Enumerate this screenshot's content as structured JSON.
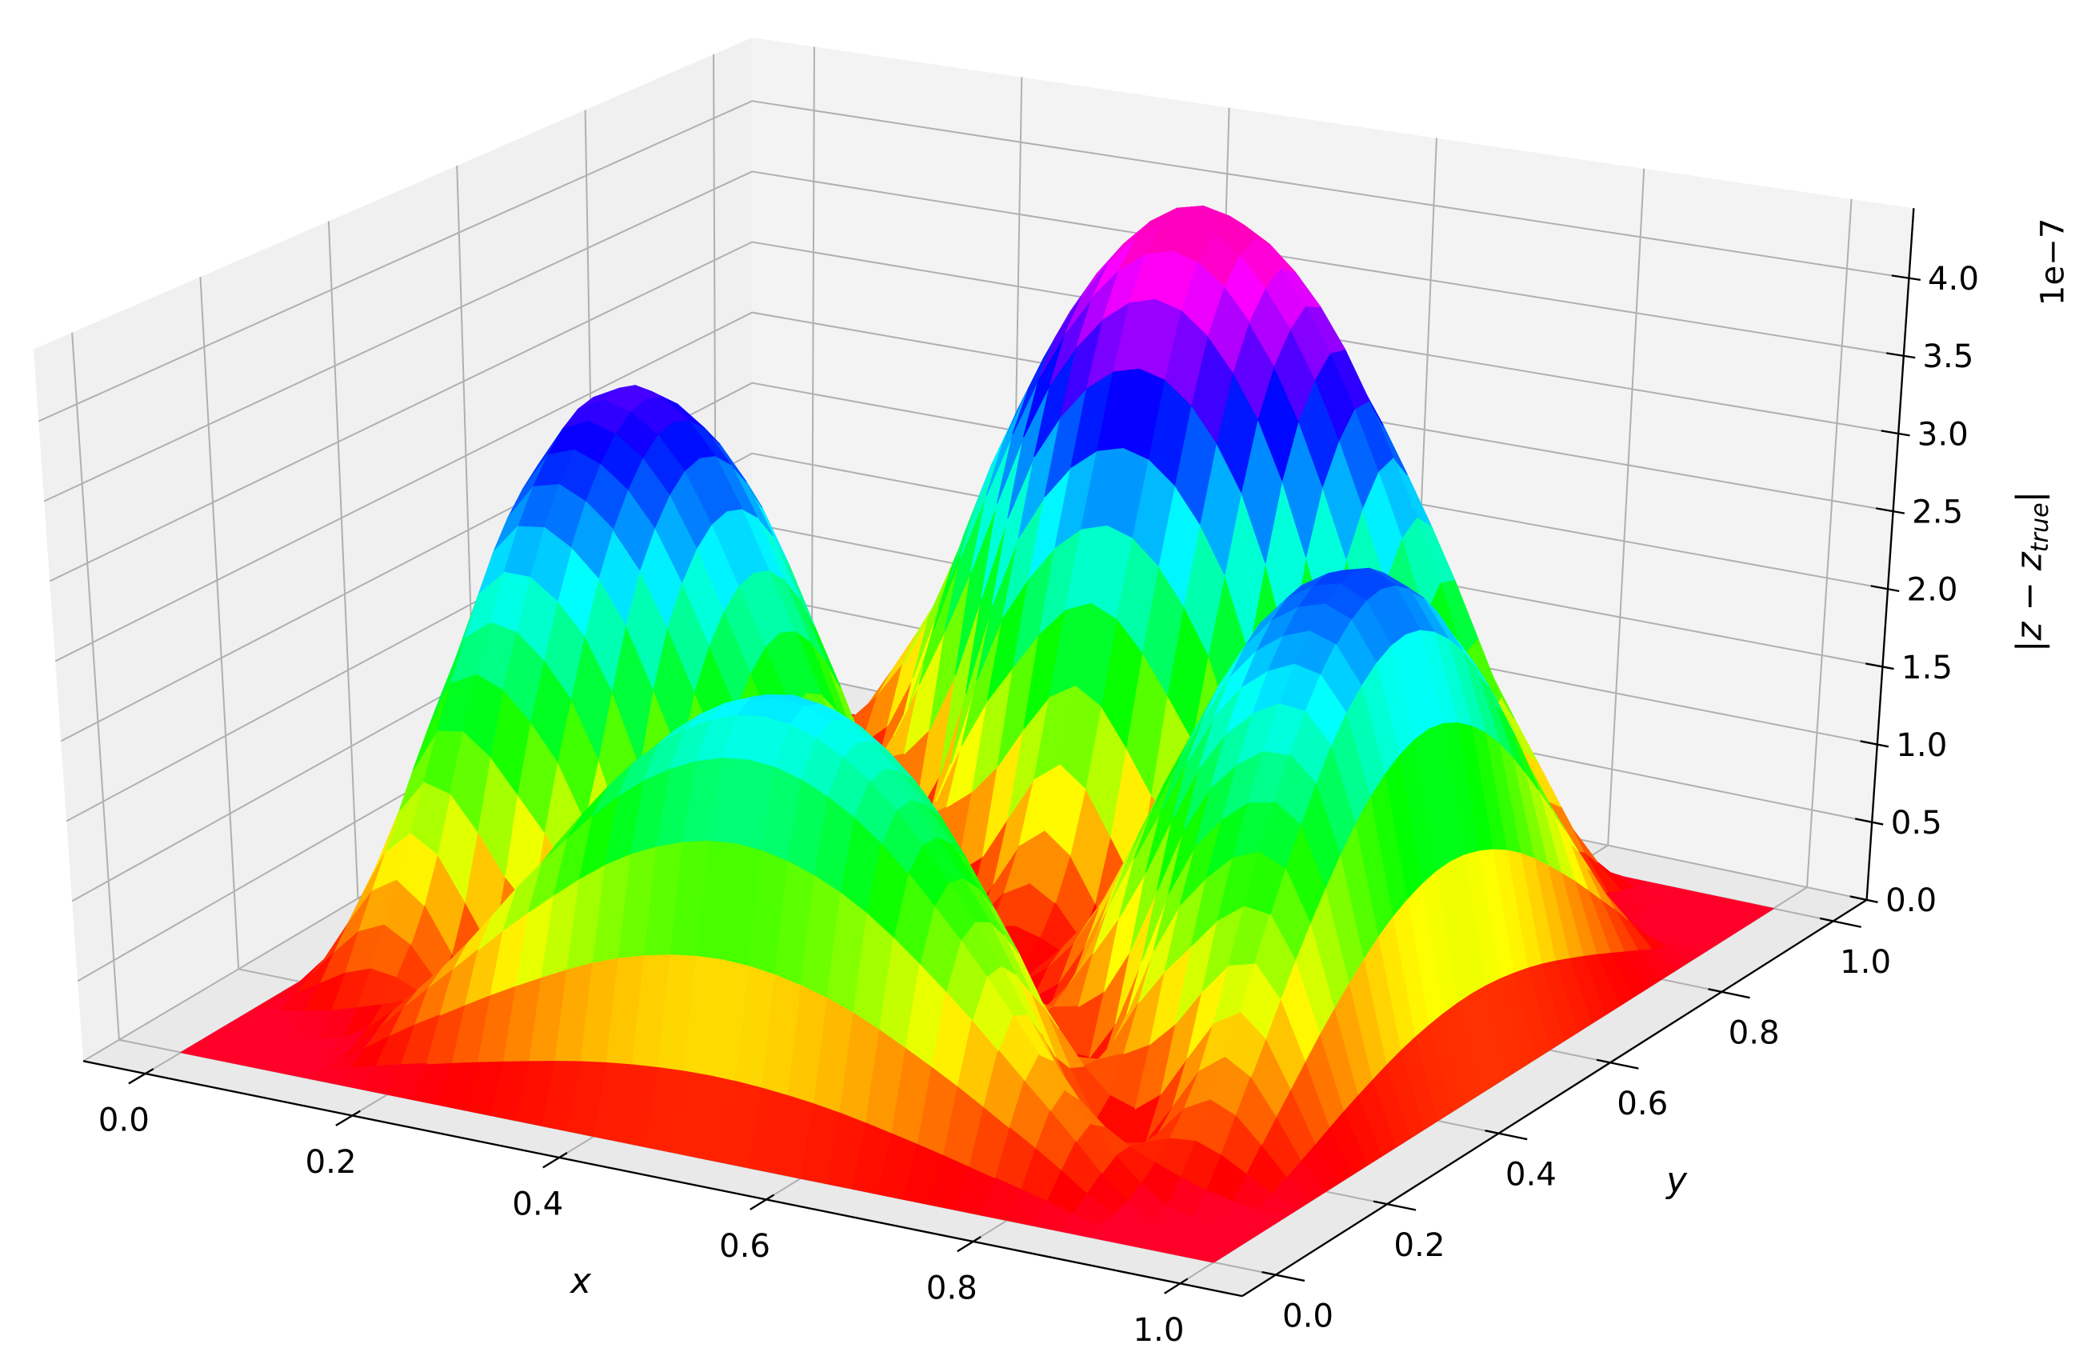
{
  "chart_data": {
    "type": "surface",
    "xlabel": "x",
    "ylabel": "y",
    "zlabel": [
      "|z − z",
      "true",
      "|"
    ],
    "z_offset_text": "1e−7",
    "x": [
      0,
      0.1,
      0.2,
      0.3,
      0.4,
      0.5,
      0.6,
      0.7,
      0.8,
      0.9,
      1
    ],
    "y": [
      0,
      0.1,
      0.2,
      0.3,
      0.4,
      0.5,
      0.6,
      0.7,
      0.8,
      0.9,
      1
    ],
    "z": [
      [
        0,
        0,
        0,
        0,
        0,
        0,
        0,
        0,
        0,
        0,
        0
      ],
      [
        0,
        0,
        0.57,
        1.35,
        1.98,
        2.22,
        1.98,
        1.35,
        0.57,
        0,
        0
      ],
      [
        0,
        0.78,
        0,
        1.07,
        2.01,
        2.38,
        2.01,
        1.07,
        0,
        0.68,
        0
      ],
      [
        0,
        1.83,
        1.45,
        0,
        1.04,
        1.45,
        1.04,
        0,
        1.28,
        1.62,
        0
      ],
      [
        0,
        2.69,
        2.73,
        1.41,
        0,
        0.43,
        0,
        1.24,
        2.41,
        2.37,
        0
      ],
      [
        0,
        3.02,
        3.23,
        1.98,
        0.58,
        0,
        0.51,
        1.74,
        2.85,
        2.66,
        0
      ],
      [
        0,
        2.69,
        2.73,
        1.41,
        0,
        0.74,
        0,
        1.24,
        2.41,
        2.37,
        0
      ],
      [
        0,
        1.83,
        1.45,
        0,
        1.78,
        2.5,
        1.78,
        0,
        1.28,
        1.62,
        0
      ],
      [
        0,
        0.78,
        0,
        1.84,
        3.45,
        4.09,
        3.45,
        1.84,
        0,
        0.68,
        0
      ],
      [
        0,
        0,
        0.98,
        2.32,
        3.4,
        3.82,
        3.4,
        2.32,
        0.98,
        0,
        0
      ],
      [
        0,
        0,
        0,
        0,
        0,
        0,
        0,
        0,
        0,
        0,
        0
      ]
    ],
    "xlim": [
      -0.06,
      1.06
    ],
    "ylim": [
      -0.06,
      1.06
    ],
    "zlim": [
      0,
      4.45
    ],
    "xticks": [
      {
        "value": 0,
        "label": "0.0"
      },
      0.2,
      0.4,
      0.6,
      0.8,
      {
        "value": 1,
        "label": "1.0"
      }
    ],
    "yticks": [
      {
        "value": 0,
        "label": "0.0"
      },
      0.2,
      0.4,
      0.6,
      0.8,
      {
        "value": 1,
        "label": "1.0"
      }
    ],
    "zticks": [
      {
        "value": 0,
        "label": "0.0"
      },
      0.5,
      {
        "value": 1,
        "label": "1.0"
      },
      1.5,
      {
        "value": 2,
        "label": "2.0"
      },
      2.5,
      {
        "value": 3,
        "label": "3.0"
      },
      3.5,
      {
        "value": 4,
        "label": "4.0"
      }
    ],
    "grid": true,
    "colormap": [
      {
        "at": 0,
        "color": "#ff0029"
      },
      {
        "at": 0.03,
        "color": "#ff0000"
      },
      {
        "at": 0.215,
        "color": "#ffff00"
      },
      {
        "at": 0.4,
        "color": "#00ff00"
      },
      {
        "at": 0.586,
        "color": "#00ffff"
      },
      {
        "at": 0.77,
        "color": "#0000ff"
      },
      {
        "at": 0.954,
        "color": "#ff00ff"
      },
      {
        "at": 1,
        "color": "#ff00bf"
      }
    ]
  }
}
